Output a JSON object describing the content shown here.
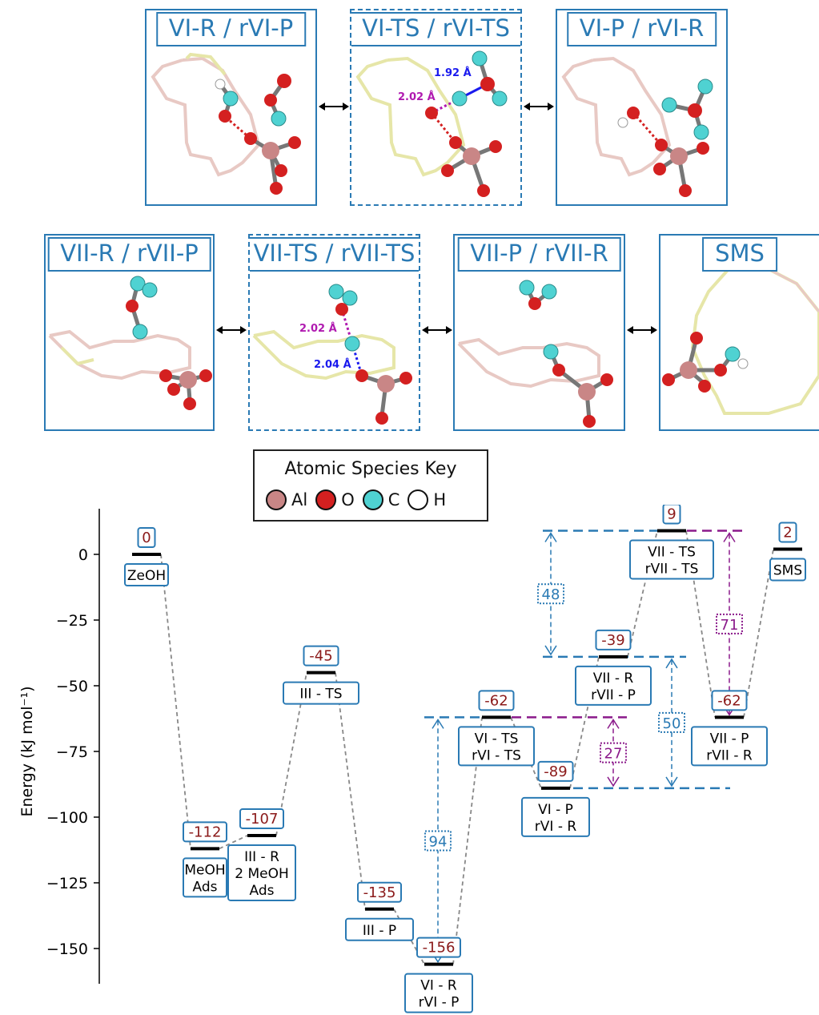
{
  "panels": {
    "row1": [
      {
        "label": "VI-R / rVI-P",
        "border": "solid"
      },
      {
        "label": "VI-TS / rVI-TS",
        "border": "dashed",
        "dist_a": "1.92 Å",
        "dist_b": "2.02 Å"
      },
      {
        "label": "VI-P / rVI-R",
        "border": "solid"
      }
    ],
    "row2": [
      {
        "label": "VII-R / rVII-P",
        "border": "solid"
      },
      {
        "label": "VII-TS / rVII-TS",
        "border": "dashed",
        "dist_a": "2.02 Å",
        "dist_b": "2.04 Å"
      },
      {
        "label": "VII-P / rVII-R",
        "border": "solid"
      },
      {
        "label": "SMS",
        "border": "solid"
      }
    ]
  },
  "legend": {
    "title": "Atomic Species Key",
    "items": [
      {
        "label": "Al",
        "color": "#c98686"
      },
      {
        "label": "O",
        "color": "#d42020"
      },
      {
        "label": "C",
        "color": "#4fd2d2"
      },
      {
        "label": "H",
        "color": "#ffffff"
      }
    ]
  },
  "colors": {
    "panel_border": "#2a7ab4",
    "value_text": "#8b1a1a",
    "blue_arrow": "#2a7ab4",
    "purple_arrow": "#8b1a8b",
    "dist_blue": "#1a1aee",
    "dist_magenta": "#b01ab0"
  },
  "chart_data": {
    "type": "energy_profile",
    "ylabel": "Energy (kJ mol⁻¹)",
    "yticks": [
      0,
      -25,
      -50,
      -75,
      -100,
      -125,
      -150
    ],
    "ylim": [
      -165,
      17
    ],
    "levels": [
      {
        "id": "ZeOH",
        "value": 0,
        "value_label": "0",
        "name": "ZeOH"
      },
      {
        "id": "MeOHAds",
        "value": -112,
        "value_label": "-112",
        "name": "MeOH\nAds"
      },
      {
        "id": "IIIR",
        "value": -107,
        "value_label": "-107",
        "name": "III - R\n2 MeOH\nAds"
      },
      {
        "id": "IIITS",
        "value": -45,
        "value_label": "-45",
        "name": "III - TS"
      },
      {
        "id": "IIIP",
        "value": -135,
        "value_label": "-135",
        "name": "III - P"
      },
      {
        "id": "VIR",
        "value": -156,
        "value_label": "-156",
        "name": "VI - R\nrVI - P"
      },
      {
        "id": "VITS",
        "value": -62,
        "value_label": "-62",
        "name": "VI - TS\nrVI - TS"
      },
      {
        "id": "VIP",
        "value": -89,
        "value_label": "-89",
        "name": "VI - P\nrVI - R"
      },
      {
        "id": "VIIR",
        "value": -39,
        "value_label": "-39",
        "name": "VII - R\nrVII - P"
      },
      {
        "id": "VIITS",
        "value": 9,
        "value_label": "9",
        "name": "VII - TS\nrVII - TS"
      },
      {
        "id": "VIIP",
        "value": -62,
        "value_label": "-62",
        "name": "VII - P\nrVII - R"
      },
      {
        "id": "SMS",
        "value": 2,
        "value_label": "2",
        "name": "SMS"
      }
    ],
    "barriers": [
      {
        "value": 94,
        "label": "94",
        "from": -156,
        "to": -62,
        "color": "blue"
      },
      {
        "value": 27,
        "label": "27",
        "from": -89,
        "to": -62,
        "color": "purple"
      },
      {
        "value": 48,
        "label": "48",
        "from": -39,
        "to": 9,
        "color": "blue"
      },
      {
        "value": 50,
        "label": "50",
        "from": -89,
        "to": -39,
        "color": "blue"
      },
      {
        "value": 71,
        "label": "71",
        "from": -62,
        "to": 9,
        "color": "purple"
      }
    ]
  }
}
